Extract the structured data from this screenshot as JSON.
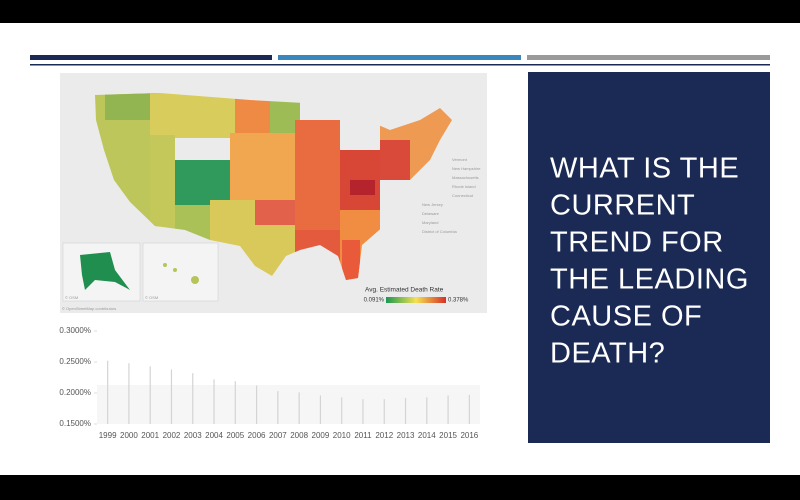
{
  "slide": {
    "title_lines": [
      "WHAT IS THE",
      "CURRENT",
      "TREND FOR",
      "THE LEADING",
      "CAUSE OF",
      "DEATH?"
    ]
  },
  "map": {
    "legend_title": "Avg. Estimated Death Rate",
    "legend_min": "0.091%",
    "legend_max": "0.378%",
    "attribution": "© OpenStreetMap contributors",
    "inset_credit": "© OSM",
    "place_labels": [
      "Vermont",
      "New Hampshire",
      "Massachusetts",
      "Rhode Island",
      "Connecticut",
      "New Jersey",
      "Delaware",
      "Maryland",
      "District of Columbia"
    ]
  },
  "chart_data": {
    "type": "bar",
    "categories": [
      "1999",
      "2000",
      "2001",
      "2002",
      "2003",
      "2004",
      "2005",
      "2006",
      "2007",
      "2008",
      "2009",
      "2010",
      "2011",
      "2012",
      "2013",
      "2014",
      "2015",
      "2016"
    ],
    "values": [
      0.252,
      0.248,
      0.243,
      0.238,
      0.232,
      0.222,
      0.219,
      0.212,
      0.203,
      0.201,
      0.196,
      0.193,
      0.19,
      0.19,
      0.192,
      0.193,
      0.196,
      0.197
    ],
    "color": "#d4d4d4",
    "ylim": [
      0.15,
      0.3
    ],
    "yticks": [
      {
        "value": 0.15,
        "label": "0.1500%"
      },
      {
        "value": 0.2,
        "label": "0.2000%"
      },
      {
        "value": 0.25,
        "label": "0.2500%"
      },
      {
        "value": 0.3,
        "label": "0.3000%"
      }
    ]
  }
}
